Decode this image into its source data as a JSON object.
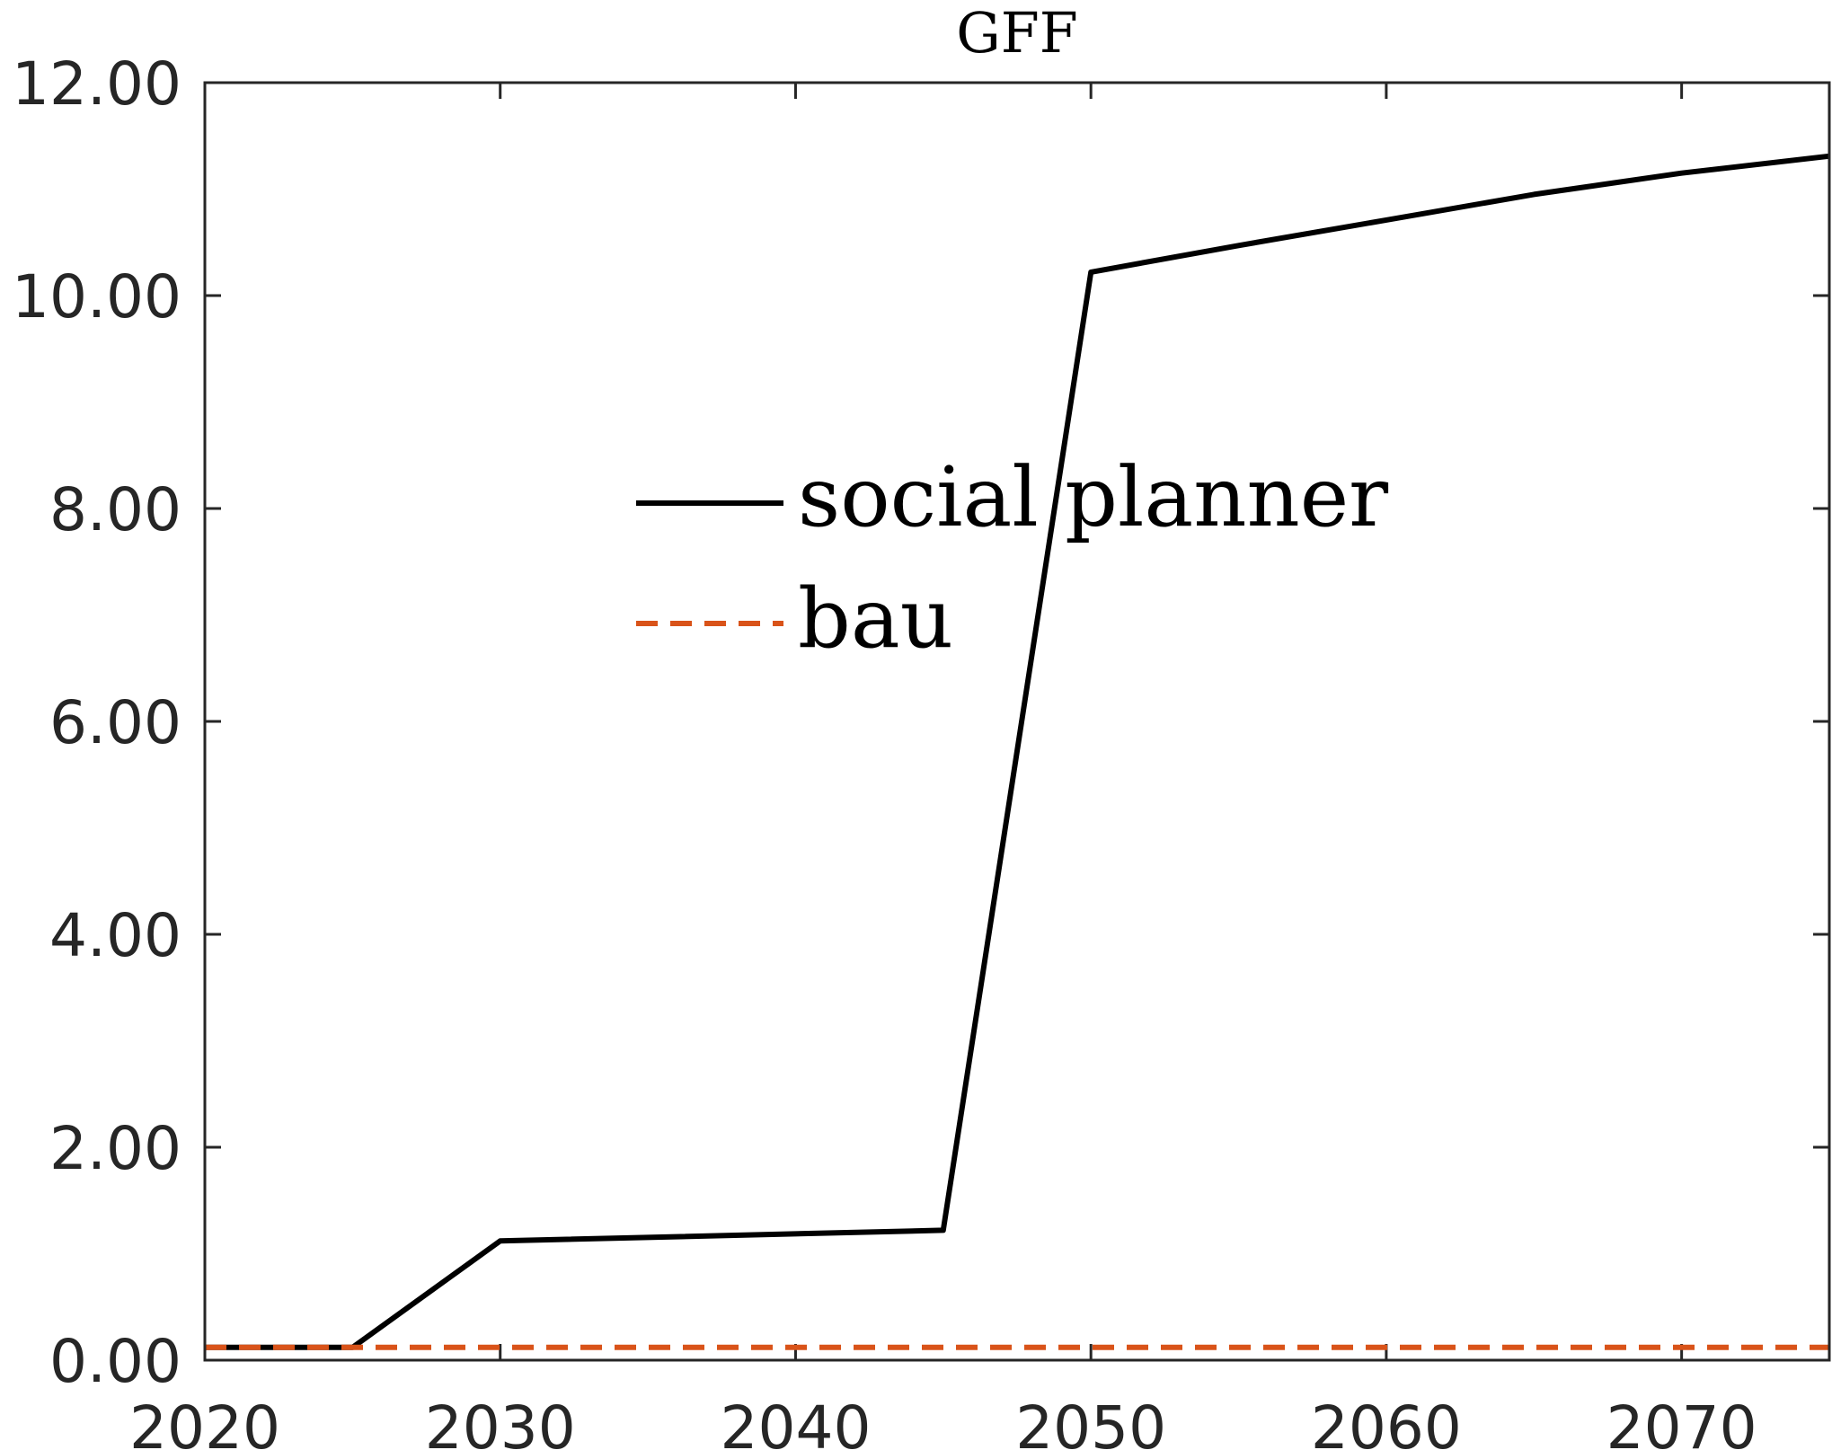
{
  "chart_data": {
    "type": "line",
    "title": "GFF",
    "xlabel": "",
    "ylabel": "",
    "xlim": [
      2020,
      2075
    ],
    "ylim": [
      0,
      12
    ],
    "x_ticks": [
      2020,
      2030,
      2040,
      2050,
      2060,
      2070
    ],
    "x_tick_labels": [
      "2020",
      "2030",
      "2040",
      "2050",
      "2060",
      "2070"
    ],
    "y_ticks": [
      0,
      2,
      4,
      6,
      8,
      10,
      12
    ],
    "y_tick_labels": [
      "0.00",
      "2.00",
      "4.00",
      "6.00",
      "8.00",
      "10.00",
      "12.00"
    ],
    "grid": false,
    "legend_position": "center",
    "series": [
      {
        "name": "social planner",
        "color": "#000000",
        "dash": "solid",
        "x": [
          2020,
          2025,
          2030,
          2045,
          2050,
          2055,
          2060,
          2065,
          2070,
          2075
        ],
        "y": [
          0.12,
          0.12,
          1.12,
          1.22,
          10.22,
          10.47,
          10.71,
          10.95,
          11.15,
          11.31
        ]
      },
      {
        "name": "bau",
        "color": "#D95319",
        "dash": "dashed",
        "x": [
          2020,
          2025,
          2030,
          2045,
          2050,
          2055,
          2060,
          2065,
          2070,
          2075
        ],
        "y": [
          0.12,
          0.12,
          0.12,
          0.12,
          0.12,
          0.12,
          0.12,
          0.12,
          0.12,
          0.12
        ]
      }
    ]
  }
}
